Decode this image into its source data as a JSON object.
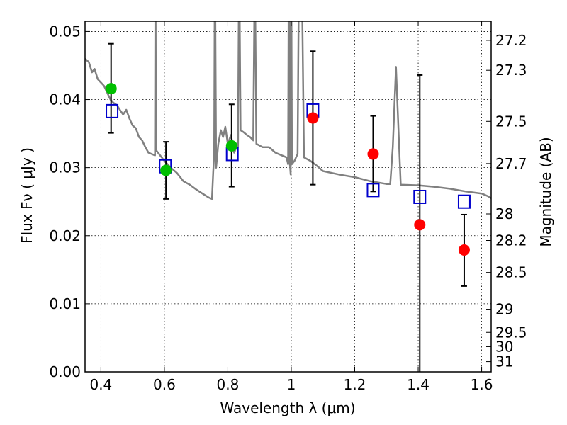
{
  "chart_data": {
    "type": "scatter",
    "xlabel": "Wavelength  λ (μm)",
    "ylabel": "Flux  Fν  ( μJy )",
    "y2label": "Magnitude (AB)",
    "xlim": [
      0.35,
      1.63
    ],
    "ylim": [
      0.0,
      0.0515
    ],
    "xticks": [
      0.4,
      0.6,
      0.8,
      1.0,
      1.2,
      1.4,
      1.6
    ],
    "xticklabels": [
      "0.4",
      "0.6",
      "0.8",
      "1",
      "1.2",
      "1.4",
      "1.6"
    ],
    "yticks": [
      0.0,
      0.01,
      0.02,
      0.03,
      0.04,
      0.05
    ],
    "yticklabels": [
      "0.00",
      "0.01",
      "0.02",
      "0.03",
      "0.04",
      "0.05"
    ],
    "right_ticks": [
      {
        "label": "27.2",
        "flux": 0.0487
      },
      {
        "label": "27.3",
        "flux": 0.0443
      },
      {
        "label": "27.5",
        "flux": 0.0368
      },
      {
        "label": "27.7",
        "flux": 0.0306
      },
      {
        "label": "28",
        "flux": 0.0232
      },
      {
        "label": "28.2",
        "flux": 0.0193
      },
      {
        "label": "28.5",
        "flux": 0.0146
      },
      {
        "label": "29",
        "flux": 0.0092
      },
      {
        "label": "29.5",
        "flux": 0.0058
      },
      {
        "label": "30",
        "flux": 0.0037
      },
      {
        "label": "31",
        "flux": 0.0015
      }
    ],
    "grid": true,
    "colors": {
      "model": "#808080",
      "green": "#00bf00",
      "red": "#ff0000",
      "square": "#0000cc",
      "errorbar": "#000000"
    },
    "model_sed": [
      [
        0.35,
        0.046
      ],
      [
        0.362,
        0.0455
      ],
      [
        0.372,
        0.044
      ],
      [
        0.38,
        0.0445
      ],
      [
        0.39,
        0.043
      ],
      [
        0.4,
        0.0425
      ],
      [
        0.41,
        0.042
      ],
      [
        0.42,
        0.041
      ],
      [
        0.43,
        0.04
      ],
      [
        0.44,
        0.0395
      ],
      [
        0.45,
        0.0392
      ],
      [
        0.46,
        0.0385
      ],
      [
        0.47,
        0.0378
      ],
      [
        0.48,
        0.0385
      ],
      [
        0.49,
        0.0372
      ],
      [
        0.5,
        0.0362
      ],
      [
        0.51,
        0.0358
      ],
      [
        0.52,
        0.0345
      ],
      [
        0.53,
        0.034
      ],
      [
        0.54,
        0.033
      ],
      [
        0.55,
        0.0322
      ],
      [
        0.56,
        0.032
      ],
      [
        0.5705,
        0.0318
      ],
      [
        0.5715,
        0.052
      ],
      [
        0.5725,
        0.0518
      ],
      [
        0.5735,
        0.0326
      ],
      [
        0.59,
        0.0316
      ],
      [
        0.6,
        0.031
      ],
      [
        0.62,
        0.03
      ],
      [
        0.64,
        0.0292
      ],
      [
        0.66,
        0.028
      ],
      [
        0.68,
        0.0275
      ],
      [
        0.7,
        0.0268
      ],
      [
        0.72,
        0.0262
      ],
      [
        0.74,
        0.0256
      ],
      [
        0.75,
        0.0254
      ],
      [
        0.754,
        0.0295
      ],
      [
        0.757,
        0.032
      ],
      [
        0.7585,
        0.052
      ],
      [
        0.7605,
        0.052
      ],
      [
        0.763,
        0.03
      ],
      [
        0.77,
        0.0335
      ],
      [
        0.778,
        0.0355
      ],
      [
        0.785,
        0.0345
      ],
      [
        0.792,
        0.036
      ],
      [
        0.8,
        0.0335
      ],
      [
        0.81,
        0.0348
      ],
      [
        0.82,
        0.0322
      ],
      [
        0.827,
        0.033
      ],
      [
        0.832,
        0.033
      ],
      [
        0.8345,
        0.052
      ],
      [
        0.8375,
        0.052
      ],
      [
        0.84,
        0.0355
      ],
      [
        0.85,
        0.0352
      ],
      [
        0.86,
        0.0348
      ],
      [
        0.87,
        0.0345
      ],
      [
        0.88,
        0.034
      ],
      [
        0.8835,
        0.052
      ],
      [
        0.8865,
        0.052
      ],
      [
        0.89,
        0.0335
      ],
      [
        0.91,
        0.033
      ],
      [
        0.93,
        0.033
      ],
      [
        0.95,
        0.0322
      ],
      [
        0.97,
        0.0318
      ],
      [
        0.985,
        0.0315
      ],
      [
        0.99,
        0.0305
      ],
      [
        0.9915,
        0.052
      ],
      [
        0.9935,
        0.052
      ],
      [
        0.995,
        0.031
      ],
      [
        0.998,
        0.029
      ],
      [
        0.9985,
        0.052
      ],
      [
        1.0005,
        0.052
      ],
      [
        1.002,
        0.0305
      ],
      [
        1.01,
        0.031
      ],
      [
        1.02,
        0.032
      ],
      [
        1.023,
        0.052
      ],
      [
        1.035,
        0.052
      ],
      [
        1.04,
        0.0315
      ],
      [
        1.06,
        0.031
      ],
      [
        1.08,
        0.0303
      ],
      [
        1.1,
        0.0295
      ],
      [
        1.15,
        0.029
      ],
      [
        1.2,
        0.0286
      ],
      [
        1.25,
        0.028
      ],
      [
        1.3,
        0.0276
      ],
      [
        1.312,
        0.0276
      ],
      [
        1.32,
        0.033
      ],
      [
        1.33,
        0.0448
      ],
      [
        1.34,
        0.033
      ],
      [
        1.345,
        0.0275
      ],
      [
        1.4,
        0.0274
      ],
      [
        1.45,
        0.0272
      ],
      [
        1.5,
        0.0269
      ],
      [
        1.55,
        0.0265
      ],
      [
        1.6,
        0.0262
      ],
      [
        1.62,
        0.0258
      ],
      [
        1.63,
        0.0255
      ]
    ],
    "points_green": [
      {
        "x": 0.432,
        "y": 0.0416
      },
      {
        "x": 0.605,
        "y": 0.0296
      },
      {
        "x": 0.812,
        "y": 0.0332
      }
    ],
    "points_red": [
      {
        "x": 1.068,
        "y": 0.0373
      },
      {
        "x": 1.258,
        "y": 0.032
      },
      {
        "x": 1.405,
        "y": 0.0216
      },
      {
        "x": 1.545,
        "y": 0.0179
      }
    ],
    "points_square": [
      {
        "x": 0.435,
        "y": 0.0383
      },
      {
        "x": 0.603,
        "y": 0.0302
      },
      {
        "x": 0.814,
        "y": 0.032
      },
      {
        "x": 1.068,
        "y": 0.0384
      },
      {
        "x": 1.258,
        "y": 0.0267
      },
      {
        "x": 1.405,
        "y": 0.0257
      },
      {
        "x": 1.545,
        "y": 0.025
      }
    ],
    "errorbars": [
      {
        "x": 0.432,
        "low": 0.0351,
        "high": 0.0482
      },
      {
        "x": 0.605,
        "low": 0.0254,
        "high": 0.0338
      },
      {
        "x": 0.812,
        "low": 0.0272,
        "high": 0.0393
      },
      {
        "x": 1.068,
        "low": 0.0275,
        "high": 0.0471
      },
      {
        "x": 1.258,
        "low": 0.0265,
        "high": 0.0376
      },
      {
        "x": 1.405,
        "low": 0.0,
        "high": 0.0436
      },
      {
        "x": 1.545,
        "low": 0.0126,
        "high": 0.0231
      }
    ]
  }
}
